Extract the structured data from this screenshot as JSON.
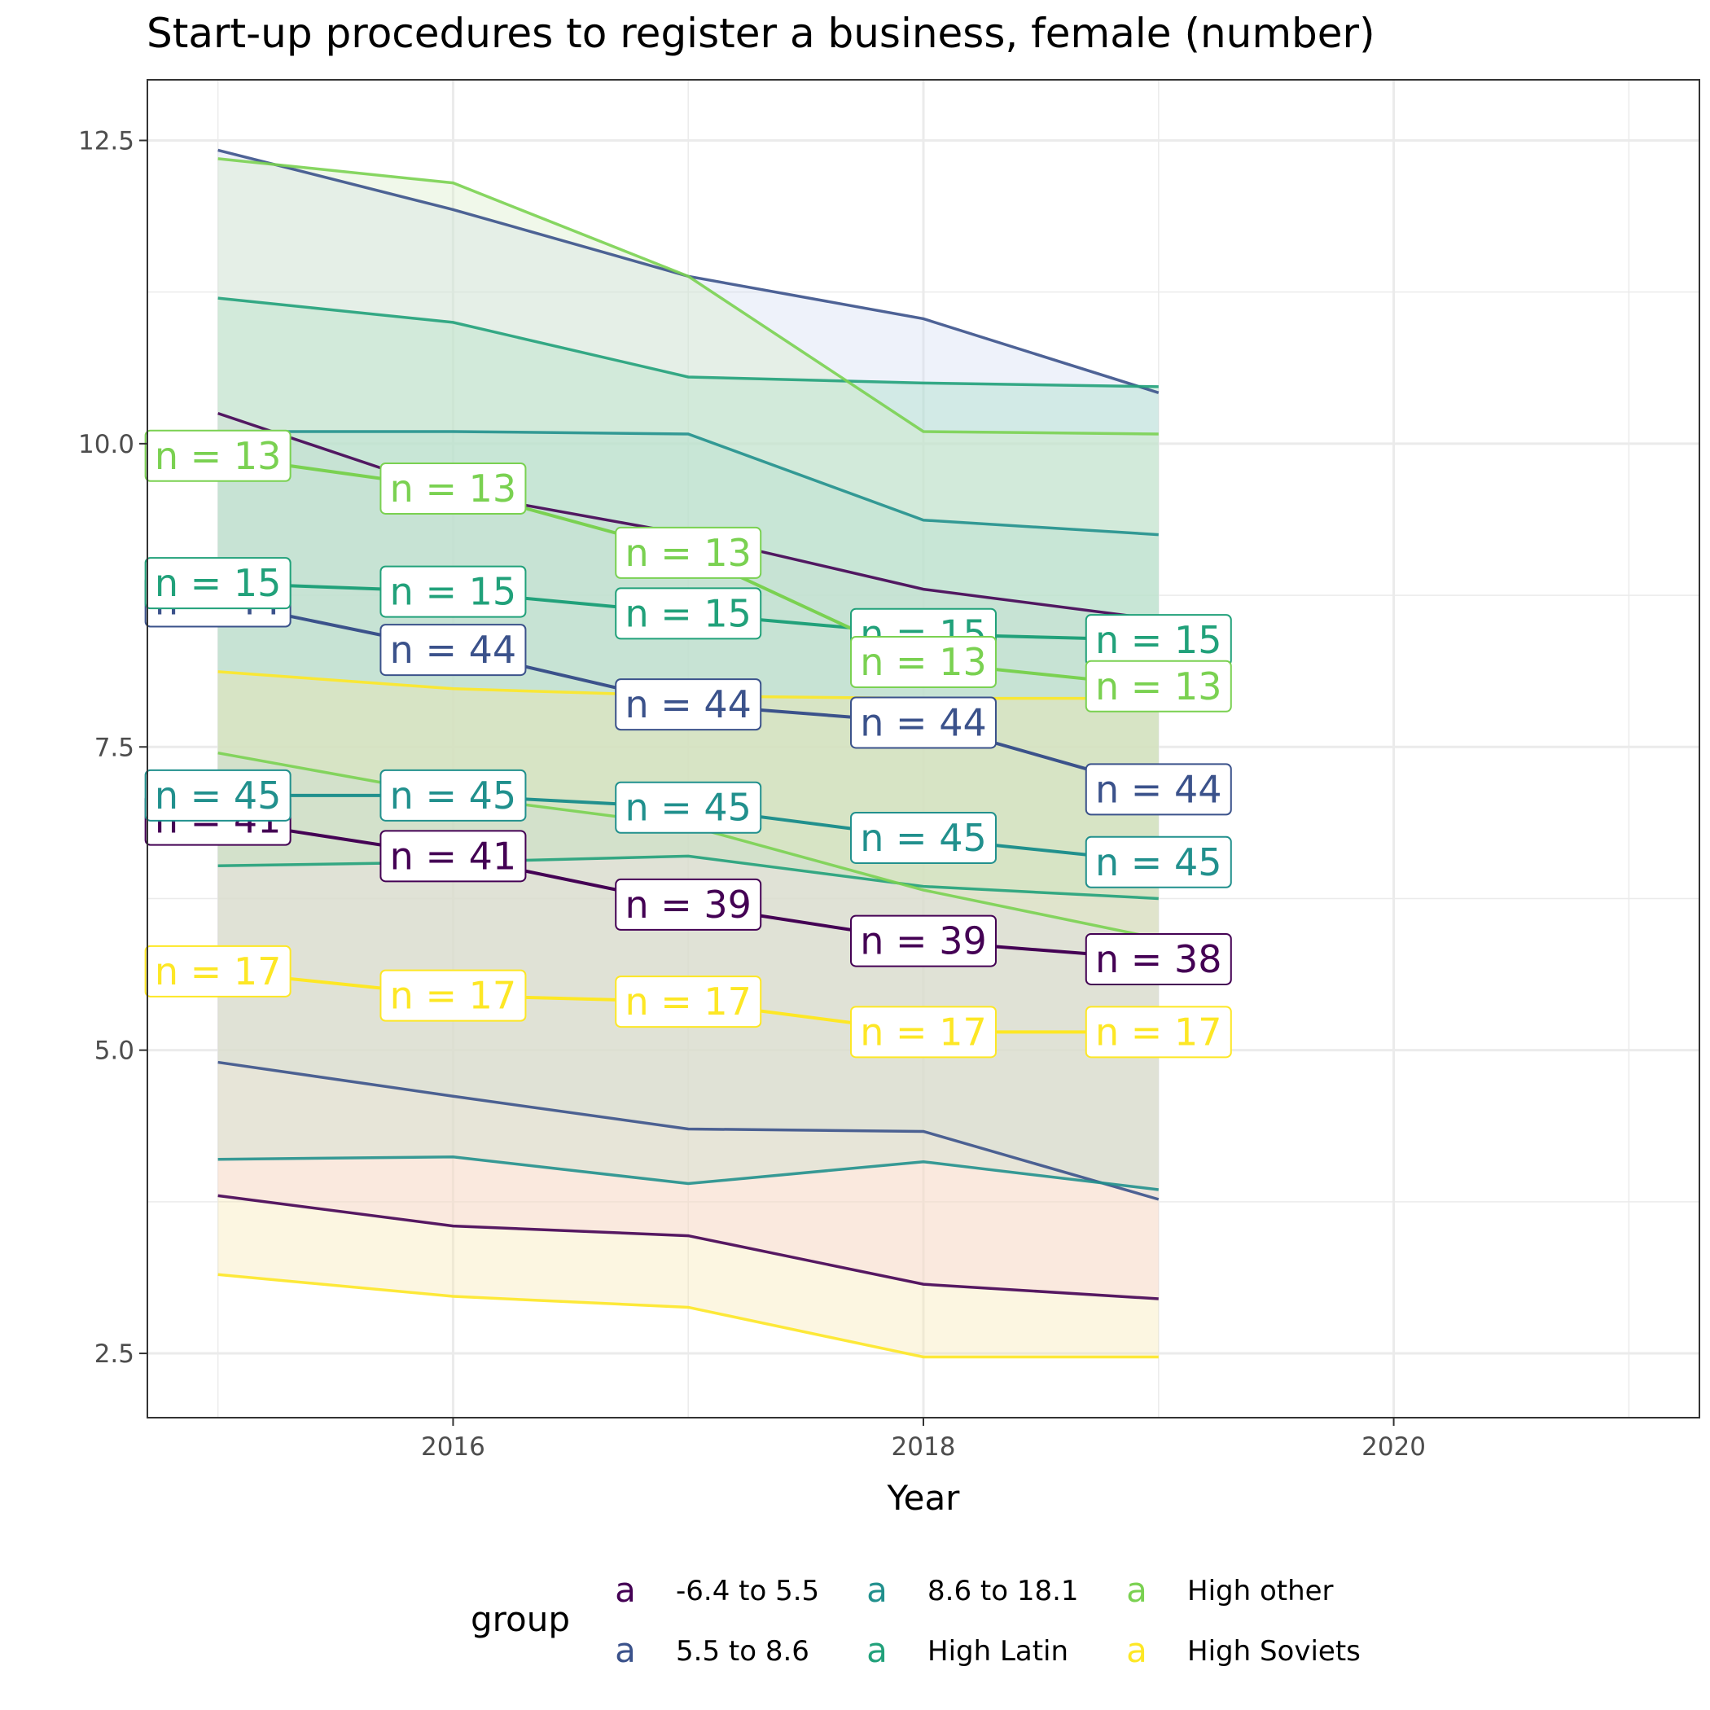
{
  "chart_data": {
    "type": "line",
    "title": "Start-up procedures to register a business, female (number)",
    "xlabel": "Year",
    "ylabel": "",
    "xlim": [
      2014.7,
      2021.3
    ],
    "ylim": [
      1.97,
      13.0
    ],
    "x_ticks": [
      2016,
      2018,
      2020
    ],
    "x_tick_labels": [
      "2016",
      "2018",
      "2020"
    ],
    "y_ticks": [
      2.5,
      5.0,
      7.5,
      10.0,
      12.5
    ],
    "y_tick_labels": [
      "2.5",
      "5.0",
      "7.5",
      "10.0",
      "12.5"
    ],
    "grid": true,
    "x": [
      2015,
      2016,
      2017,
      2018,
      2019
    ],
    "legend": {
      "title": "group",
      "position": "bottom",
      "key_glyph": "a",
      "entries": [
        "-6.4 to 5.5",
        "5.5 to 8.6",
        "8.6 to 18.1",
        "High Latin",
        "High other",
        "High Soviets"
      ]
    },
    "series": [
      {
        "name": "-6.4 to 5.5",
        "color": "#440154",
        "mean": [
          6.9,
          6.6,
          6.2,
          5.9,
          5.75
        ],
        "upper": [
          10.25,
          9.6,
          9.25,
          8.8,
          8.55
        ],
        "lower": [
          3.8,
          3.55,
          3.47,
          3.07,
          2.95
        ],
        "band_fill": "#f5c9f0",
        "n_labels": [
          "n = 41",
          "n = 41",
          "n = 39",
          "n = 39",
          "n = 38"
        ]
      },
      {
        "name": "5.5 to 8.6",
        "color": "#3b528b",
        "mean": [
          8.7,
          8.3,
          7.85,
          7.7,
          7.15
        ],
        "upper": [
          12.42,
          11.93,
          11.38,
          11.03,
          10.42
        ],
        "lower": [
          4.9,
          4.62,
          4.35,
          4.33,
          3.77
        ],
        "band_fill": "#cdd9f0",
        "n_labels": [
          "n = 44",
          "n = 44",
          "n = 44",
          "n = 44",
          "n = 44"
        ]
      },
      {
        "name": "8.6 to 18.1",
        "color": "#21908d",
        "mean": [
          7.1,
          7.1,
          7.0,
          6.75,
          6.55
        ],
        "upper": [
          10.1,
          10.1,
          10.08,
          9.37,
          9.25
        ],
        "lower": [
          4.1,
          4.12,
          3.9,
          4.08,
          3.85
        ],
        "band_fill": "#a9dbe0",
        "n_labels": [
          "n = 45",
          "n = 45",
          "n = 45",
          "n = 45",
          "n = 45"
        ]
      },
      {
        "name": "High Latin",
        "color": "#21a17a",
        "mean": [
          8.85,
          8.78,
          8.6,
          8.43,
          8.38
        ],
        "upper": [
          11.2,
          11.0,
          10.55,
          10.5,
          10.47
        ],
        "lower": [
          6.52,
          6.55,
          6.6,
          6.35,
          6.25
        ],
        "band_fill": "#9fdcc0",
        "n_labels": [
          "n = 15",
          "n = 15",
          "n = 15",
          "n = 15",
          "n = 15"
        ]
      },
      {
        "name": "High other",
        "color": "#7ad151",
        "mean": [
          9.9,
          9.63,
          9.1,
          8.2,
          8.0
        ],
        "upper": [
          12.35,
          12.15,
          11.38,
          10.1,
          10.08
        ],
        "lower": [
          7.45,
          7.1,
          6.85,
          6.32,
          5.92
        ],
        "band_fill": "#d3ecc3",
        "n_labels": [
          "n = 13",
          "n = 13",
          "n = 13",
          "n = 13",
          "n = 13"
        ]
      },
      {
        "name": "High Soviets",
        "color": "#fde725",
        "mean": [
          5.65,
          5.45,
          5.4,
          5.15,
          5.15
        ],
        "upper": [
          8.12,
          7.98,
          7.92,
          7.9,
          7.9
        ],
        "lower": [
          3.15,
          2.97,
          2.88,
          2.47,
          2.47
        ],
        "band_fill": "#f5e6a8",
        "n_labels": [
          "n = 17",
          "n = 17",
          "n = 17",
          "n = 17",
          "n = 17"
        ]
      }
    ]
  }
}
